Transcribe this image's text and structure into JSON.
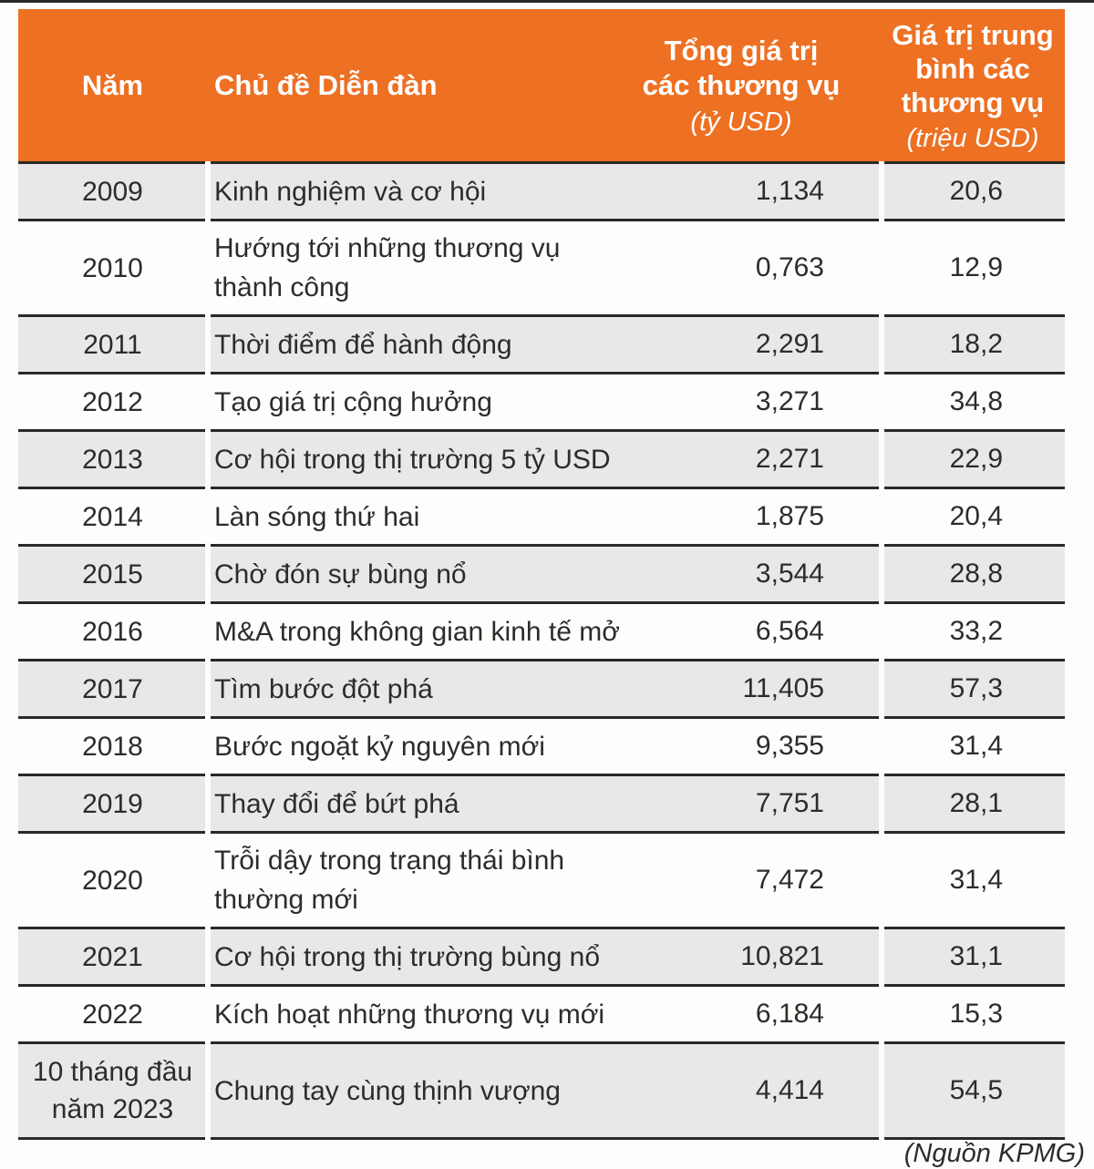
{
  "colors": {
    "accent_orange": "#ED7023",
    "row_alt_gray": "#E9E8E8",
    "separator_line": "#2B2927",
    "header_text": "#FFFFFF",
    "body_text": "#2E2C2A"
  },
  "chart_data": {
    "type": "table",
    "header": {
      "year": "Năm",
      "topic": "Chủ đề Diễn đàn",
      "total_title": "Tổng giá trị\ncác thương vụ",
      "total_unit": "(tỷ USD)",
      "avg_title": "Giá trị trung\nbình các\nthương vụ",
      "avg_unit": "(triệu USD)"
    },
    "rows": [
      {
        "year": "2009",
        "topic": "Kinh nghiệm và cơ hội",
        "total": "1,134",
        "avg": "20,6"
      },
      {
        "year": "2010",
        "topic": "Hướng tới những thương vụ\nthành công",
        "total": "0,763",
        "avg": "12,9"
      },
      {
        "year": "2011",
        "topic": "Thời điểm để hành động",
        "total": "2,291",
        "avg": "18,2"
      },
      {
        "year": "2012",
        "topic": "Tạo giá trị cộng hưởng",
        "total": "3,271",
        "avg": "34,8"
      },
      {
        "year": "2013",
        "topic": "Cơ hội trong thị trường 5 tỷ USD",
        "total": "2,271",
        "avg": "22,9"
      },
      {
        "year": "2014",
        "topic": "Làn sóng thứ hai",
        "total": "1,875",
        "avg": "20,4"
      },
      {
        "year": "2015",
        "topic": "Chờ đón sự bùng nổ",
        "total": "3,544",
        "avg": "28,8"
      },
      {
        "year": "2016",
        "topic": "M&A trong không gian kinh tế mở",
        "total": "6,564",
        "avg": "33,2"
      },
      {
        "year": "2017",
        "topic": "Tìm bước đột phá",
        "total": "11,405",
        "avg": "57,3"
      },
      {
        "year": "2018",
        "topic": "Bước ngoặt kỷ nguyên mới",
        "total": "9,355",
        "avg": "31,4"
      },
      {
        "year": "2019",
        "topic": "Thay đổi để bứt phá",
        "total": "7,751",
        "avg": "28,1"
      },
      {
        "year": "2020",
        "topic": "Trỗi dậy trong trạng thái bình\nthường mới",
        "total": "7,472",
        "avg": "31,4"
      },
      {
        "year": "2021",
        "topic": "Cơ hội trong thị trường bùng nổ",
        "total": "10,821",
        "avg": "31,1"
      },
      {
        "year": "2022",
        "topic": "Kích hoạt những thương vụ mới",
        "total": "6,184",
        "avg": "15,3"
      },
      {
        "year": "10 tháng đầu\nnăm 2023",
        "topic": "Chung tay cùng thịnh vượng",
        "total": "4,414",
        "avg": "54,5"
      }
    ],
    "source": "(Nguồn KPMG)"
  }
}
